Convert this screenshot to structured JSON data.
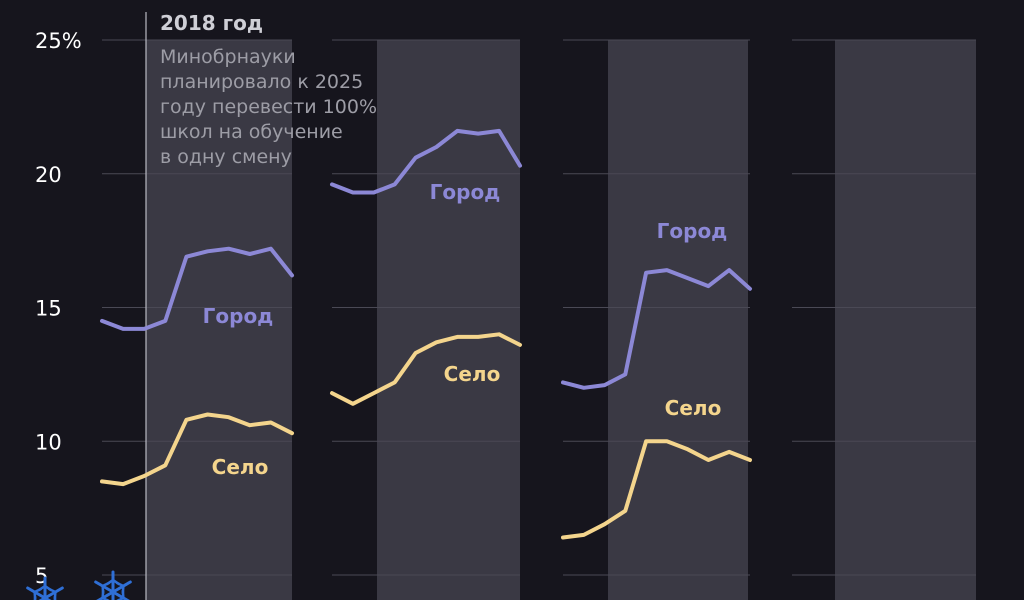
{
  "chart_data": {
    "type": "line",
    "y_unit_label": "25%",
    "y_ticks": [
      5,
      10,
      15,
      20,
      25
    ],
    "y_tick_labels": [
      "5",
      "10",
      "15",
      "20",
      "25%"
    ],
    "ylim": [
      5,
      25
    ],
    "grid": true,
    "annotation": {
      "title": "2018 год",
      "lines": [
        "Минобрнауки",
        "планировало к 2025",
        "году перевести 100%",
        "школ на обучение",
        "в одну смену"
      ]
    },
    "panels": [
      {
        "series": [
          {
            "name": "Город",
            "color": "#8c88d6",
            "values": [
              14.5,
              14.2,
              14.2,
              14.5,
              16.9,
              17.1,
              17.2,
              17.0,
              17.2,
              16.2
            ]
          },
          {
            "name": "Село",
            "color": "#f4d58d",
            "values": [
              8.5,
              8.4,
              8.7,
              9.1,
              10.8,
              11.0,
              10.9,
              10.6,
              10.7,
              10.3
            ]
          }
        ]
      },
      {
        "series": [
          {
            "name": "Город",
            "color": "#8c88d6",
            "values": [
              19.6,
              19.3,
              19.3,
              19.6,
              20.6,
              21.0,
              21.6,
              21.5,
              21.6,
              20.3
            ]
          },
          {
            "name": "Село",
            "color": "#f4d58d",
            "values": [
              11.8,
              11.4,
              11.8,
              12.2,
              13.3,
              13.7,
              13.9,
              13.9,
              14.0,
              13.6
            ]
          }
        ]
      },
      {
        "series": [
          {
            "name": "Город",
            "color": "#8c88d6",
            "values": [
              12.2,
              12.0,
              12.1,
              12.5,
              16.3,
              16.4,
              16.1,
              15.8,
              16.4,
              15.7
            ]
          },
          {
            "name": "Село",
            "color": "#f4d58d",
            "values": [
              6.4,
              6.5,
              6.9,
              7.4,
              10.0,
              10.0,
              9.7,
              9.3,
              9.6,
              9.3
            ]
          }
        ]
      },
      {
        "series": []
      }
    ]
  }
}
